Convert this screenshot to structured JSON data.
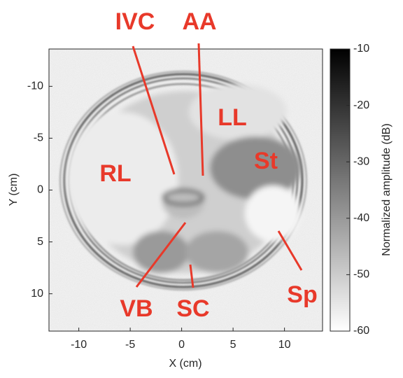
{
  "chart_data": {
    "type": "image",
    "xlabel": "X (cm)",
    "ylabel": "Y (cm)",
    "xlim": [
      -12.9,
      13.7
    ],
    "xticks": [
      -10,
      -5,
      0,
      5,
      10
    ],
    "ylim": [
      -13.6,
      13.6
    ],
    "y_reversed": true,
    "yticks": [
      -10,
      -5,
      0,
      5,
      10
    ],
    "colormap": "gray",
    "colorbar": {
      "label": "Normalized amplitude (dB)",
      "clim": [
        -60,
        -10
      ],
      "ticks": [
        -10,
        -20,
        -30,
        -40,
        -50,
        -60
      ]
    },
    "annotations": [
      "IVC",
      "AA",
      "LL",
      "St",
      "RL",
      "VB",
      "SC",
      "Sp"
    ],
    "annotation_color": "#e8392a"
  }
}
